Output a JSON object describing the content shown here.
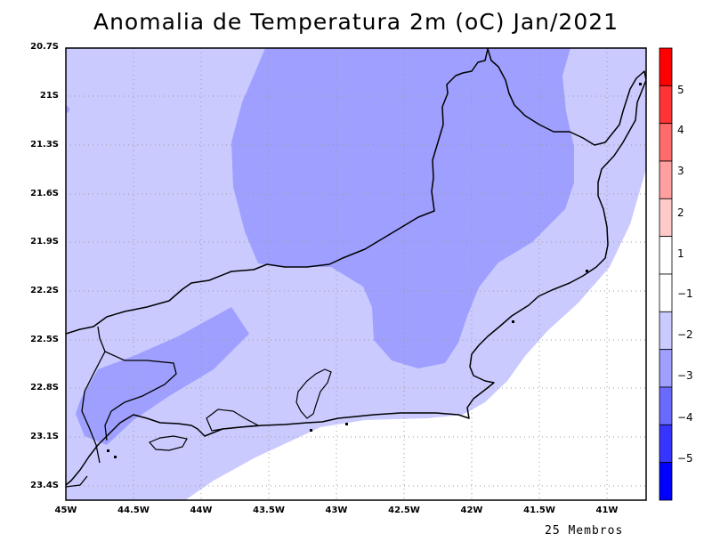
{
  "title": "Anomalia de Temperatura 2m (oC) Jan/2021",
  "footnote": "25 Membros",
  "lat_labels": [
    "20.7S",
    "21S",
    "21.3S",
    "21.6S",
    "21.9S",
    "22.2S",
    "22.5S",
    "22.8S",
    "23.1S",
    "23.4S"
  ],
  "lon_labels": [
    "45W",
    "44.5W",
    "44W",
    "43.5W",
    "43W",
    "42.5W",
    "42W",
    "41.5W",
    "41W"
  ],
  "colorbar": {
    "labels": [
      "5",
      "4",
      "3",
      "2",
      "1",
      "−1",
      "−2",
      "−3",
      "−4",
      "−5"
    ],
    "colors": [
      "#ff0000",
      "#ff3535",
      "#ff6a6a",
      "#ff9f9f",
      "#ffcaca",
      "#ffffff",
      "#ffffff",
      "#cacaff",
      "#9f9fff",
      "#6a6aff",
      "#3535ff",
      "#0000ff"
    ]
  },
  "chart_data": {
    "type": "heatmap",
    "title": "Anomalia de Temperatura 2m (oC) Jan/2021",
    "lon_range": [
      -45,
      -40.7
    ],
    "lat_range": [
      -23.5,
      -20.7
    ],
    "levels": [
      -5,
      -4,
      -3,
      -2,
      -1,
      1,
      2,
      3,
      4,
      5
    ],
    "field_regions": [
      {
        "range": [
          -1,
          1
        ],
        "color": "#ffffff",
        "area": "offshore south"
      },
      {
        "range": [
          -2,
          -1
        ],
        "color": "#cacaff",
        "area": "most of domain"
      },
      {
        "range": [
          -3,
          -2
        ],
        "color": "#9f9fff",
        "area": "northern-central interior and south-west"
      }
    ],
    "grid": true,
    "note": "25 Membros"
  }
}
